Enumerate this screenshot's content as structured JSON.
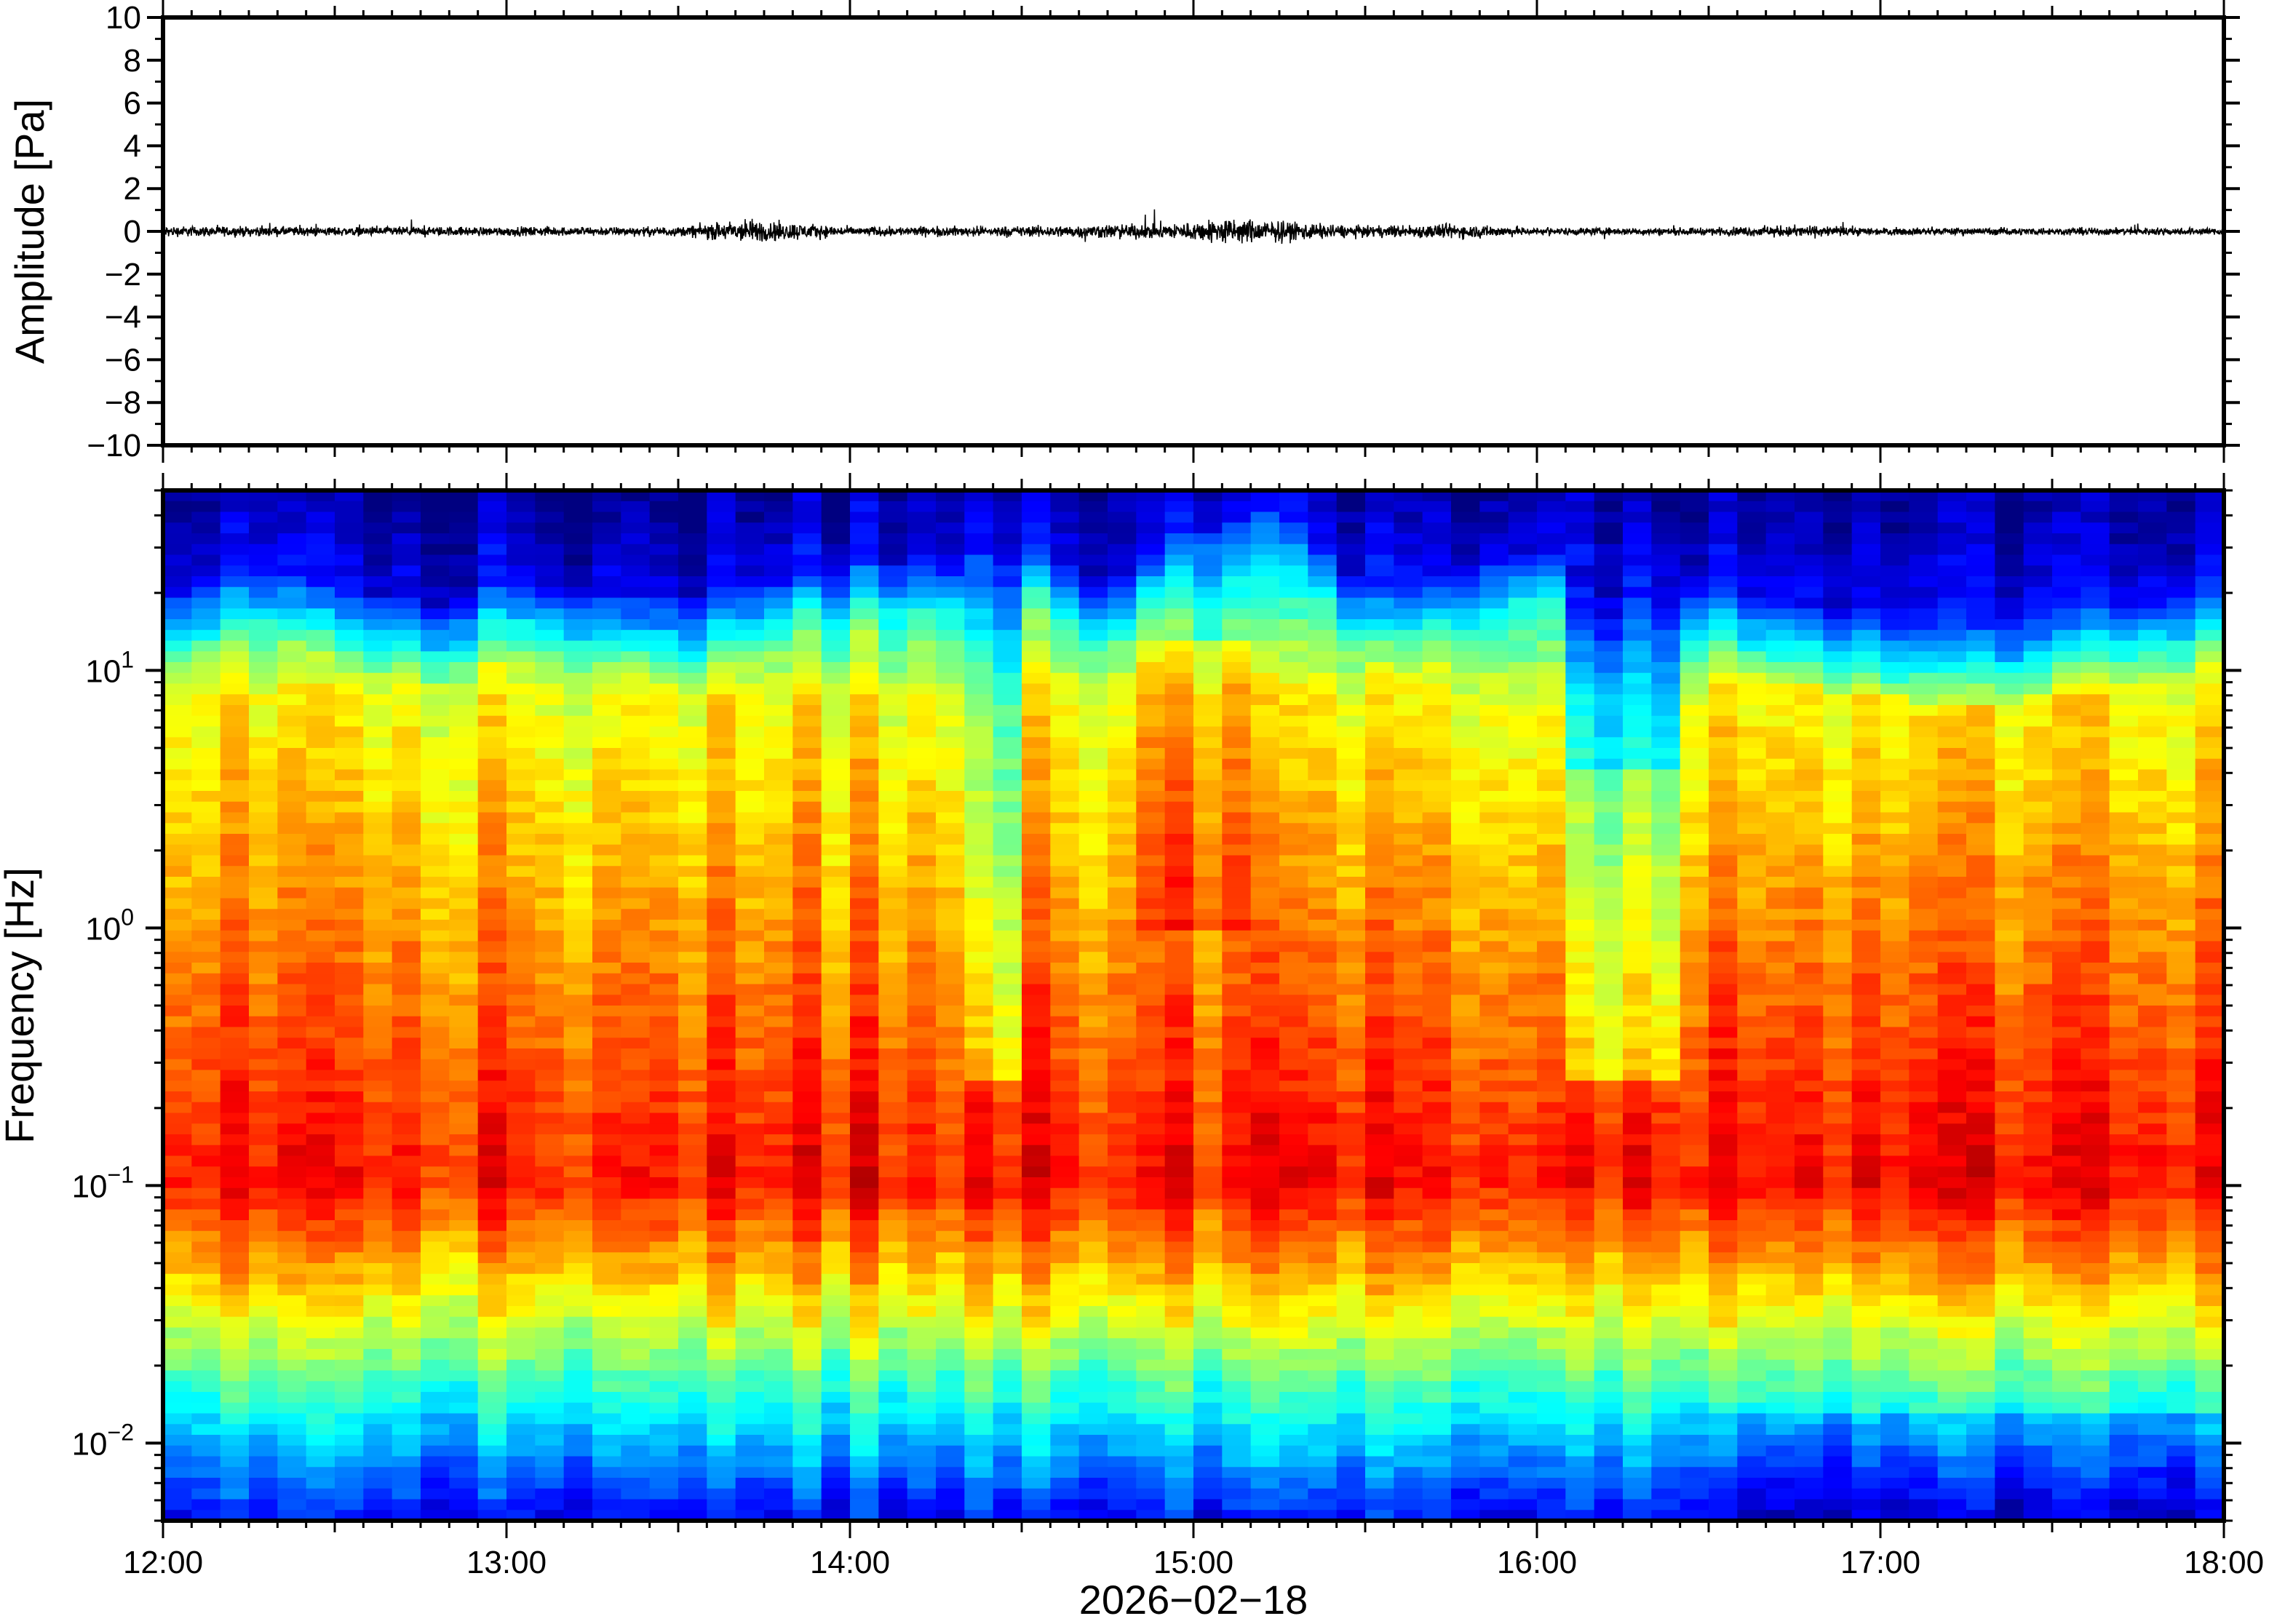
{
  "chart_data": [
    {
      "type": "line",
      "ylabel": "Amplitude [Pa]",
      "ylim": [
        -10,
        10
      ],
      "yticks": [
        "10",
        "8",
        "6",
        "4",
        "2",
        "0",
        "−2",
        "−4",
        "−6",
        "−8",
        "−10"
      ],
      "xlim": [
        "12:00",
        "18:00"
      ],
      "series": [
        {
          "color": "#000000",
          "style": "dense waveform, typical peak amplitude about ±0.5 Pa",
          "x": [
            "12:00",
            "12:30",
            "13:00",
            "13:30",
            "13:42",
            "14:00",
            "14:30",
            "14:50",
            "15:00",
            "15:05",
            "15:30",
            "15:45",
            "16:00",
            "16:30",
            "16:45",
            "17:00",
            "17:30",
            "18:00"
          ],
          "envelope": [
            0.35,
            0.3,
            0.3,
            0.3,
            0.8,
            0.3,
            0.35,
            0.5,
            0.6,
            0.9,
            0.35,
            0.5,
            0.25,
            0.25,
            0.4,
            0.25,
            0.25,
            0.25
          ]
        }
      ]
    },
    {
      "type": "heatmap",
      "ylabel": "Frequency [Hz]",
      "xlabel": "2026−02−18",
      "yscale": "log",
      "ylim": [
        0.005,
        50
      ],
      "yticks": [
        {
          "base": "10",
          "exp": "1",
          "value": 10
        },
        {
          "base": "10",
          "exp": "0",
          "value": 1
        },
        {
          "base": "10",
          "exp": "−1",
          "value": 0.1
        },
        {
          "base": "10",
          "exp": "−2",
          "value": 0.01
        }
      ],
      "xticks": [
        "12:00",
        "13:00",
        "14:00",
        "15:00",
        "16:00",
        "17:00",
        "18:00"
      ],
      "colormap": "jet",
      "colors": {
        "low": "#0a0a78",
        "mid": "#7fe6a8",
        "high": "#ff7a2a"
      },
      "time_columns": 72,
      "freq_rows": 96,
      "description_of_features": {
        "max_frequency_cutoff_hz": [
          20,
          24,
          20,
          18,
          22,
          20,
          18,
          22,
          26,
          26,
          30,
          20,
          36,
          40,
          20,
          22,
          30,
          22,
          20,
          18,
          16,
          14,
          16,
          18,
          20
        ],
        "column_anomalies": [
          {
            "time": "14:25",
            "effect": "low power above 0.3 Hz"
          },
          {
            "time": "16:15",
            "effect": "low power above 0.2 Hz"
          },
          {
            "time": "15:00",
            "effect": "elevated power 2–10 Hz"
          }
        ]
      }
    }
  ]
}
